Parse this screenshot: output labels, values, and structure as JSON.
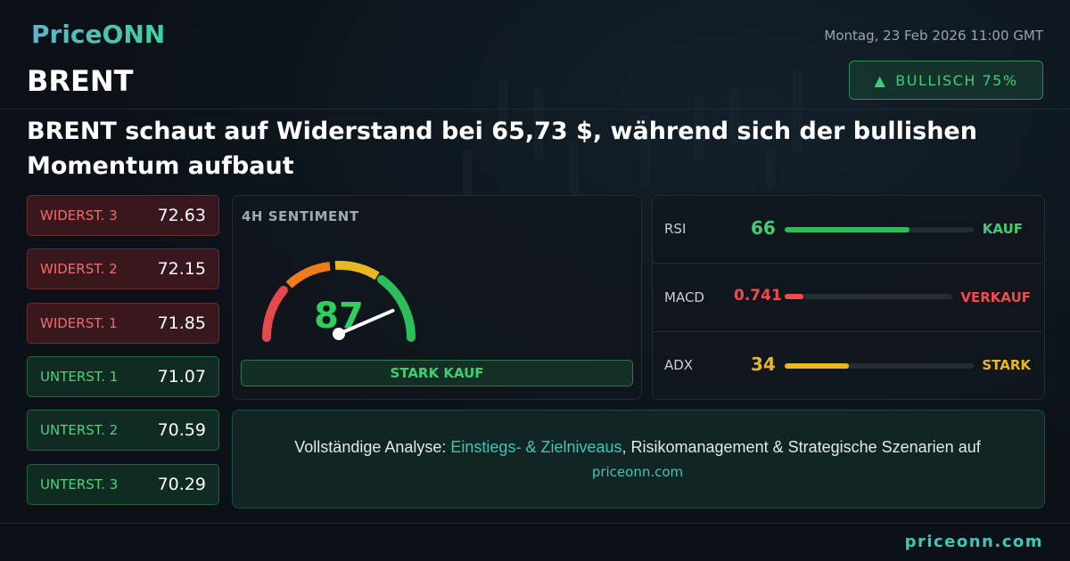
{
  "header": {
    "logo": "PriceONN",
    "date": "Montag, 23 Feb 2026 11:00 GMT",
    "symbol": "BRENT",
    "badge": "BULLISCH 75%",
    "headline": "BRENT schaut auf Widerstand bei 65,73 $, während sich der bullishen Momentum aufbaut"
  },
  "levels": [
    {
      "label": "WIDERST. 3",
      "value": 72.63
    },
    {
      "label": "WIDERST. 2",
      "value": 72.15
    },
    {
      "label": "WIDERST. 1",
      "value": 71.85
    },
    {
      "label": "UNTERST. 1",
      "value": 71.07
    },
    {
      "label": "UNTERST. 2",
      "value": 70.59
    },
    {
      "label": "UNTERST. 3",
      "value": 70.29
    }
  ],
  "sentiment": {
    "title": "4H SENTIMENT",
    "value": 87,
    "signal": "STARK KAUF"
  },
  "indicators": [
    {
      "name": "RSI",
      "value": 66,
      "signal": "KAUF"
    },
    {
      "name": "MACD",
      "value": 0.741,
      "signal": "VERKAUF"
    },
    {
      "name": "ADX",
      "value": 34,
      "signal": "STARK"
    }
  ],
  "cta": {
    "prefix": "Vollständige Analyse: ",
    "highlight": "Einstiegs- & Zielniveaus",
    "suffix": ", Risikomanagement & Strategische Szenarien auf",
    "link": "priceonn.com"
  },
  "footer": {
    "site": "priceonn.com"
  }
}
